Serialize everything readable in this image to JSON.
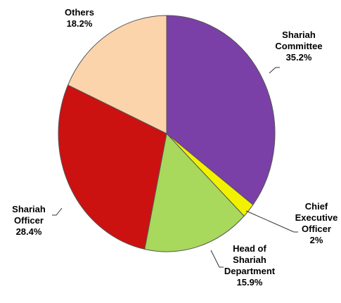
{
  "chart_data": {
    "type": "pie",
    "categories": [
      "Shariah Committee",
      "Chief Executive Officer",
      "Head of Shariah Department",
      "Shariah Officer",
      "Others"
    ],
    "values": [
      35.2,
      2,
      15.9,
      28.4,
      18.2
    ],
    "value_labels": [
      "35.2%",
      "2%",
      "15.9%",
      "28.4%",
      "18.2%"
    ],
    "colors": [
      "#7b3fa8",
      "#f2f200",
      "#a8d85c",
      "#cc1111",
      "#fcd4ac"
    ]
  }
}
